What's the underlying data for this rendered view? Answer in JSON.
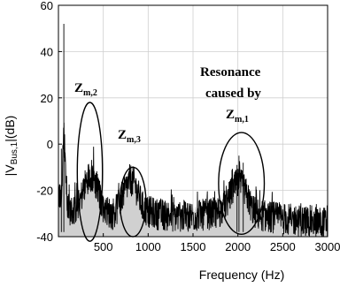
{
  "chart_data": {
    "type": "area",
    "xlabel": "Frequency (Hz)",
    "ylabel_main": "|V",
    "ylabel_sub": "Bus,1",
    "ylabel_tail": "|(dB)",
    "xlim": [
      0,
      3000
    ],
    "ylim": [
      -40,
      60
    ],
    "xticks": [
      500,
      1000,
      1500,
      2000,
      2500,
      3000
    ],
    "xtick_labels": [
      "500",
      "1000",
      "1500",
      "2000",
      "2500",
      "3000"
    ],
    "yticks": [
      -40,
      -20,
      0,
      20,
      40,
      60
    ],
    "ytick_labels": [
      "-40",
      "-20",
      "0",
      "20",
      "40",
      "60"
    ],
    "grid": true,
    "colors": {
      "fill": "#d0d0d0",
      "line": "#000000",
      "grid": "#cfcfcf"
    },
    "envelope": {
      "x": [
        0,
        30,
        60,
        100,
        150,
        200,
        250,
        300,
        350,
        400,
        450,
        500,
        550,
        600,
        650,
        700,
        750,
        800,
        850,
        900,
        950,
        1000,
        1100,
        1200,
        1300,
        1400,
        1500,
        1600,
        1700,
        1800,
        1850,
        1900,
        1950,
        2000,
        2050,
        2100,
        2150,
        2200,
        2300,
        2400,
        2500,
        2600,
        2700,
        2800,
        2900,
        3000
      ],
      "y": [
        -18,
        -20,
        10,
        -24,
        -26,
        -24,
        -20,
        -14,
        -10,
        -12,
        -18,
        -24,
        -26,
        -27,
        -25,
        -20,
        -16,
        -12,
        -14,
        -20,
        -25,
        -26,
        -27,
        -27.5,
        -28,
        -28,
        -28,
        -27.5,
        -27,
        -26,
        -24,
        -20,
        -16,
        -14,
        -15,
        -19,
        -24,
        -27,
        -28,
        -28.5,
        -29,
        -29.5,
        -30,
        -30,
        -30.5,
        -31
      ]
    },
    "spikes": [
      {
        "x": 60,
        "y": 52
      },
      {
        "x": 33,
        "y": -2
      },
      {
        "x": 2012,
        "y": -5
      },
      {
        "x": 2060,
        "y": -8
      },
      {
        "x": 1990,
        "y": -9
      }
    ],
    "annotations": [
      {
        "id": "zm2",
        "main": "Z",
        "sub": "m,2",
        "cx": 350,
        "cy": -12,
        "rx": 140,
        "ry": 30
      },
      {
        "id": "zm3",
        "main": "Z",
        "sub": "m,3",
        "cx": 830,
        "cy": -25,
        "rx": 145,
        "ry": 15
      },
      {
        "id": "zm1",
        "main": "Z",
        "sub": "m,1",
        "cx": 2040,
        "cy": -17,
        "rx": 255,
        "ry": 22
      }
    ],
    "resonance_text": [
      "Resonance",
      "caused by"
    ]
  }
}
